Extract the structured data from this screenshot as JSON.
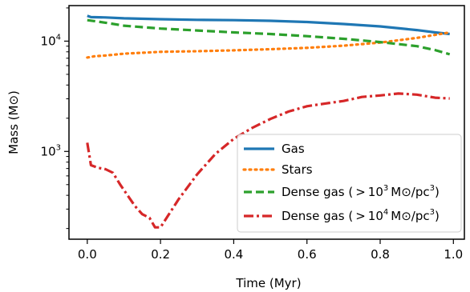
{
  "chart_data": {
    "type": "line",
    "xlabel": "Time (Myr)",
    "ylabel": "Mass (M⊙)",
    "xlim": [
      -0.05,
      1.03
    ],
    "ylim": [
      160,
      21000
    ],
    "yscale": "log",
    "grid": false,
    "legend_position": "lower-right",
    "x_ticks": [
      0.0,
      0.2,
      0.4,
      0.6,
      0.8,
      1.0
    ],
    "x_tick_labels": [
      "0.0",
      "0.2",
      "0.4",
      "0.6",
      "0.8",
      "1.0"
    ],
    "y_ticks": [
      {
        "value": 1000,
        "base": "10",
        "exp": "3"
      },
      {
        "value": 10000,
        "base": "10",
        "exp": "4"
      }
    ],
    "series": [
      {
        "name": "Gas",
        "color": "#1f77b4",
        "dash": "solid",
        "x": [
          0.0,
          0.01,
          0.05,
          0.1,
          0.2,
          0.3,
          0.4,
          0.5,
          0.6,
          0.7,
          0.8,
          0.9,
          0.95,
          0.99
        ],
        "y": [
          17000,
          16500,
          16400,
          16100,
          15800,
          15600,
          15500,
          15300,
          14900,
          14300,
          13600,
          12600,
          12000,
          11600
        ]
      },
      {
        "name": "Stars",
        "color": "#ff7f0e",
        "dash": "dotted",
        "x": [
          0.0,
          0.02,
          0.05,
          0.1,
          0.2,
          0.3,
          0.4,
          0.5,
          0.6,
          0.7,
          0.8,
          0.9,
          0.95,
          0.99
        ],
        "y": [
          7100,
          7300,
          7400,
          7700,
          8000,
          8100,
          8250,
          8450,
          8700,
          9100,
          9700,
          10700,
          11400,
          12000
        ]
      },
      {
        "name": "Dense gas",
        "legend_pre": "Dense gas (",
        "legend_threshold_base": "10",
        "legend_threshold_exp": "3",
        "legend_unit": "M⊙/pc",
        "legend_unit_exp": "3",
        "legend_post": ")",
        "color": "#2ca02c",
        "dash": "dashed",
        "x": [
          0.0,
          0.02,
          0.05,
          0.1,
          0.2,
          0.3,
          0.4,
          0.5,
          0.6,
          0.7,
          0.8,
          0.9,
          0.95,
          0.99
        ],
        "y": [
          15500,
          15200,
          14700,
          13800,
          13000,
          12500,
          12000,
          11600,
          11100,
          10500,
          9800,
          9000,
          8300,
          7600
        ]
      },
      {
        "name": "Dense gas",
        "legend_pre": "Dense gas (",
        "legend_threshold_base": "10",
        "legend_threshold_exp": "4",
        "legend_unit": "M⊙/pc",
        "legend_unit_exp": "3",
        "legend_post": ")",
        "color": "#d62728",
        "dash": "dashdot",
        "x": [
          0.0,
          0.01,
          0.03,
          0.05,
          0.07,
          0.09,
          0.11,
          0.13,
          0.15,
          0.17,
          0.185,
          0.2,
          0.22,
          0.25,
          0.3,
          0.35,
          0.4,
          0.45,
          0.5,
          0.55,
          0.6,
          0.65,
          0.7,
          0.75,
          0.8,
          0.85,
          0.9,
          0.95,
          0.99
        ],
        "y": [
          1200,
          750,
          710,
          690,
          640,
          500,
          400,
          320,
          270,
          250,
          205,
          205,
          260,
          370,
          620,
          950,
          1300,
          1630,
          1970,
          2300,
          2570,
          2720,
          2870,
          3120,
          3220,
          3350,
          3270,
          3070,
          3020
        ]
      }
    ]
  }
}
